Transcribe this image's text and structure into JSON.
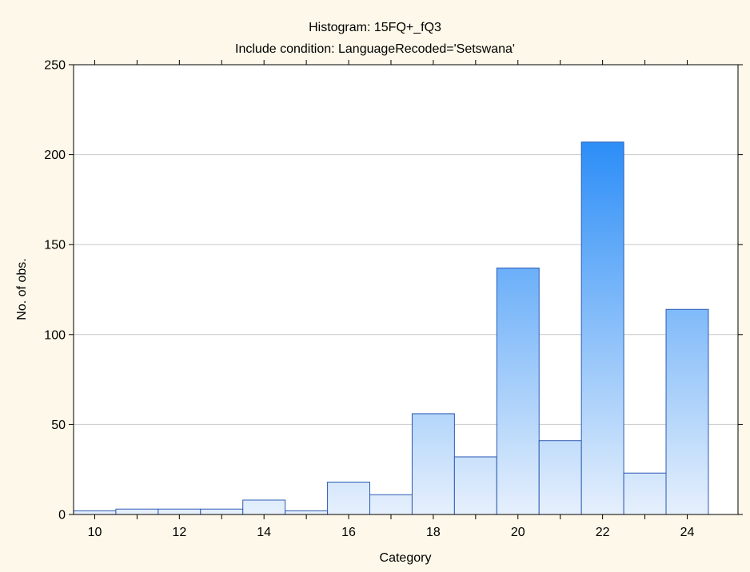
{
  "chart_data": {
    "type": "bar",
    "title": "Histogram: 15FQ+_fQ3",
    "subtitle": "Include condition: LanguageRecoded='Setswana'",
    "xlabel": "Category",
    "ylabel": "No. of obs.",
    "x": [
      10,
      11,
      12,
      13,
      14,
      15,
      16,
      17,
      18,
      19,
      20,
      21,
      22,
      23,
      24
    ],
    "values": [
      2,
      3,
      3,
      3,
      8,
      2,
      18,
      11,
      56,
      32,
      137,
      41,
      207,
      23,
      114
    ],
    "xlim": [
      9.5,
      25.2
    ],
    "ylim": [
      0,
      250
    ],
    "xticks": [
      10,
      12,
      14,
      16,
      18,
      20,
      22,
      24
    ],
    "yticks": [
      0,
      50,
      100,
      150,
      200,
      250
    ],
    "grid": "horizontal",
    "legend": "none",
    "colors": {
      "background": "#fdf8e9",
      "bar_low": "#e6f0fc",
      "bar_high": "#2b8df7",
      "bar_border": "#2d5bb4",
      "grid": "#c8c8c8"
    }
  }
}
